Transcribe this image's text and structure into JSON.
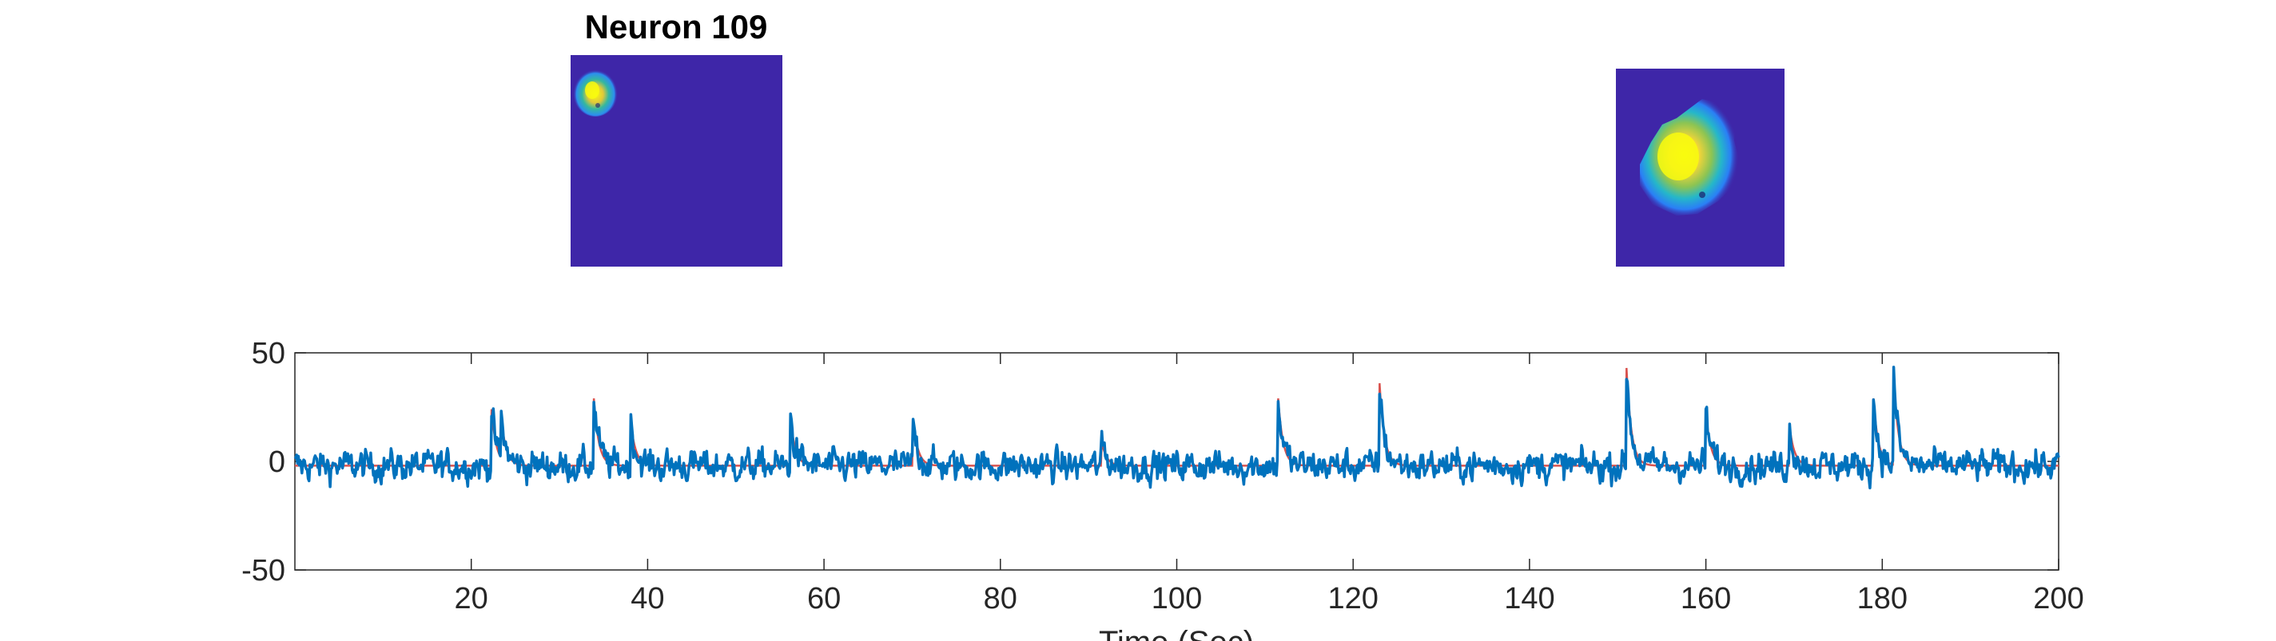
{
  "chart_data": {
    "type": "line",
    "title": "Neuron 109",
    "xlabel": "Time (Sec)",
    "ylabel": "",
    "xlim": [
      0,
      200
    ],
    "ylim": [
      -50,
      50
    ],
    "x_ticks": [
      20,
      40,
      60,
      80,
      100,
      120,
      140,
      160,
      180,
      200
    ],
    "y_ticks": [
      -50,
      0,
      50
    ],
    "grid": false,
    "colors": {
      "raw": "#0072BD",
      "fit": "#D9534F",
      "footprint_bg": "#3E26A8"
    },
    "spikes": [
      {
        "t": 22.3,
        "amp": 26
      },
      {
        "t": 23.4,
        "amp": 19
      },
      {
        "t": 33.9,
        "amp": 31
      },
      {
        "t": 38.1,
        "amp": 20
      },
      {
        "t": 56.2,
        "amp": 22
      },
      {
        "t": 70.1,
        "amp": 21
      },
      {
        "t": 91.5,
        "amp": 11
      },
      {
        "t": 111.5,
        "amp": 31
      },
      {
        "t": 123.0,
        "amp": 38
      },
      {
        "t": 151.0,
        "amp": 45
      },
      {
        "t": 160.0,
        "amp": 25
      },
      {
        "t": 169.5,
        "amp": 18
      },
      {
        "t": 179.0,
        "amp": 31
      },
      {
        "t": 181.3,
        "amp": 40
      }
    ]
  }
}
